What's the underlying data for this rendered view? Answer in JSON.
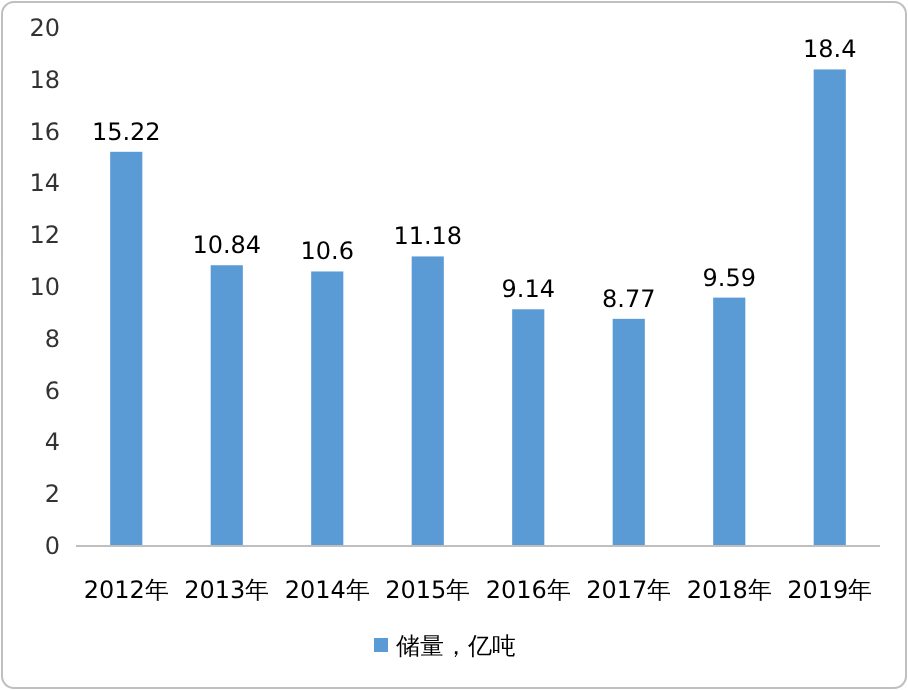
{
  "chart_data": {
    "type": "bar",
    "categories": [
      "2012年",
      "2013年",
      "2014年",
      "2015年",
      "2016年",
      "2017年",
      "2018年",
      "2019年"
    ],
    "series": [
      {
        "name": "储量，亿吨",
        "color": "#5b9bd5",
        "values": [
          15.22,
          10.84,
          10.6,
          11.18,
          9.14,
          8.77,
          9.59,
          18.4
        ]
      }
    ],
    "ylim": [
      0,
      20
    ],
    "yticks": [
      0,
      2,
      4,
      6,
      8,
      10,
      12,
      14,
      16,
      18,
      20
    ],
    "data_labels": true,
    "legend": "bottom",
    "grid": false
  }
}
